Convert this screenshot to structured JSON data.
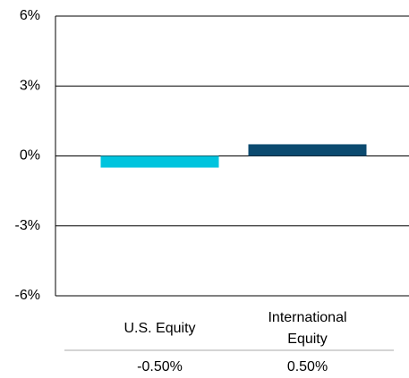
{
  "chart_data": {
    "type": "bar",
    "categories": [
      "U.S. Equity",
      "International Equity"
    ],
    "values": [
      -0.5,
      0.5
    ],
    "value_labels": [
      "-0.50%",
      "0.50%"
    ],
    "colors": [
      "#00c4de",
      "#0b4a6f"
    ],
    "ylim": [
      -6,
      6
    ],
    "yticks": [
      {
        "value": -6,
        "label": "-6%"
      },
      {
        "value": -3,
        "label": "-3%"
      },
      {
        "value": 0,
        "label": "0%"
      },
      {
        "value": 3,
        "label": "3%"
      },
      {
        "value": 6,
        "label": "6%"
      }
    ],
    "grid": true
  }
}
